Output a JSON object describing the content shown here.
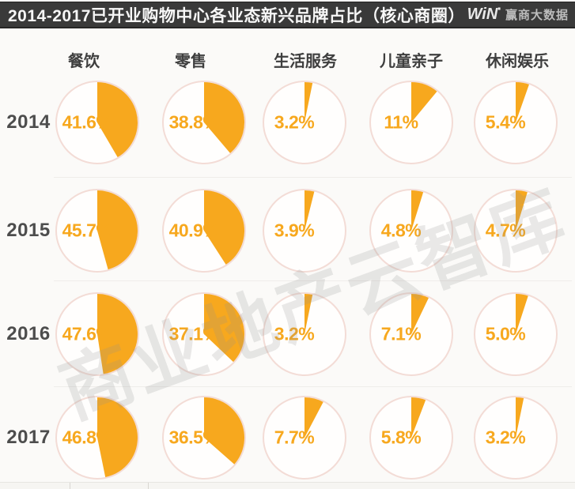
{
  "title": {
    "text": "2014-2017已开业购物中心各业态新兴品牌占比（核心商圈）",
    "logo_win": "WiN",
    "logo_brand": "赢商大数据"
  },
  "watermark": "商业地产云智库",
  "colors": {
    "accent_orange": "#F7A81E",
    "ring": "#F3DCD6",
    "pie_face": "#FFFEFD",
    "title_bar": "#3A3A3A",
    "header_text": "#3E3E3E",
    "year_text": "#4D4D4D"
  },
  "chart_data": {
    "type": "pie",
    "unit": "%",
    "title": "2014-2017已开业购物中心各业态新兴品牌占比（核心商圈）",
    "legend_position": "none",
    "grid": false,
    "categories": [
      "餐饮",
      "零售",
      "生活服务",
      "儿童亲子",
      "休闲娱乐"
    ],
    "rows": [
      "2014",
      "2015",
      "2016",
      "2017"
    ],
    "series": [
      {
        "name": "2014",
        "values": [
          41.6,
          38.8,
          3.2,
          11,
          5.4
        ],
        "labels": [
          "41.6%",
          "38.8%",
          "3.2%",
          "11%",
          "5.4%"
        ]
      },
      {
        "name": "2015",
        "values": [
          45.7,
          40.9,
          3.9,
          4.8,
          4.7
        ],
        "labels": [
          "45.7%",
          "40.9%",
          "3.9%",
          "4.8%",
          "4.7%"
        ]
      },
      {
        "name": "2016",
        "values": [
          47.6,
          37.1,
          3.2,
          7.1,
          5.0
        ],
        "labels": [
          "47.6%",
          "37.1%",
          "3.2%",
          "7.1%",
          "5.0%"
        ]
      },
      {
        "name": "2017",
        "values": [
          46.8,
          36.5,
          7.7,
          5.8,
          3.2
        ],
        "labels": [
          "46.8%",
          "36.5%",
          "7.7%",
          "5.8%",
          "3.2%"
        ]
      }
    ]
  }
}
